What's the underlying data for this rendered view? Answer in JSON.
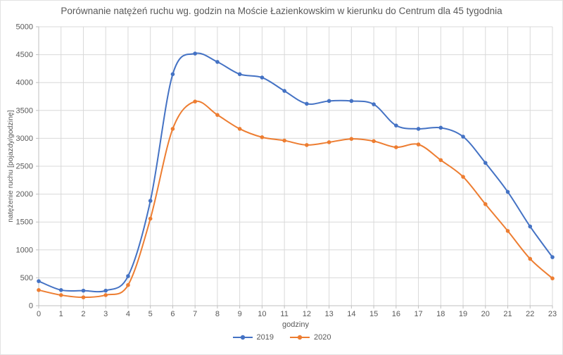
{
  "chart_data": {
    "type": "line",
    "title": "Porównanie natężeń ruchu wg. godzin na Moście Łazienkowskim w kierunku do Centrum dla 45 tygodnia",
    "xlabel": "godziny",
    "ylabel": "natężenie ruchu [pojazdy/godzinę]",
    "x": [
      0,
      1,
      2,
      3,
      4,
      5,
      6,
      7,
      8,
      9,
      10,
      11,
      12,
      13,
      14,
      15,
      16,
      17,
      18,
      19,
      20,
      21,
      22,
      23
    ],
    "y_ticks": [
      0,
      500,
      1000,
      1500,
      2000,
      2500,
      3000,
      3500,
      4000,
      4500,
      5000
    ],
    "ylim": [
      0,
      5000
    ],
    "grid": true,
    "smooth_lines": true,
    "markers": true,
    "legend_position": "bottom",
    "series": [
      {
        "name": "2019",
        "color": "#4472C4",
        "values": [
          440,
          280,
          270,
          270,
          530,
          1880,
          4150,
          4520,
          4370,
          4150,
          4090,
          3850,
          3620,
          3670,
          3670,
          3610,
          3230,
          3170,
          3190,
          3030,
          2560,
          2040,
          1420,
          870
        ]
      },
      {
        "name": "2020",
        "color": "#ED7D31",
        "values": [
          280,
          190,
          150,
          190,
          370,
          1560,
          3170,
          3660,
          3420,
          3170,
          3020,
          2960,
          2880,
          2930,
          2990,
          2950,
          2840,
          2890,
          2610,
          2310,
          1820,
          1340,
          840,
          490
        ]
      }
    ],
    "style": {
      "grid_color": "#D9D9D9",
      "axis_color": "#BFBFBF",
      "tick_label_color": "#595959",
      "title_color": "#595959"
    }
  }
}
